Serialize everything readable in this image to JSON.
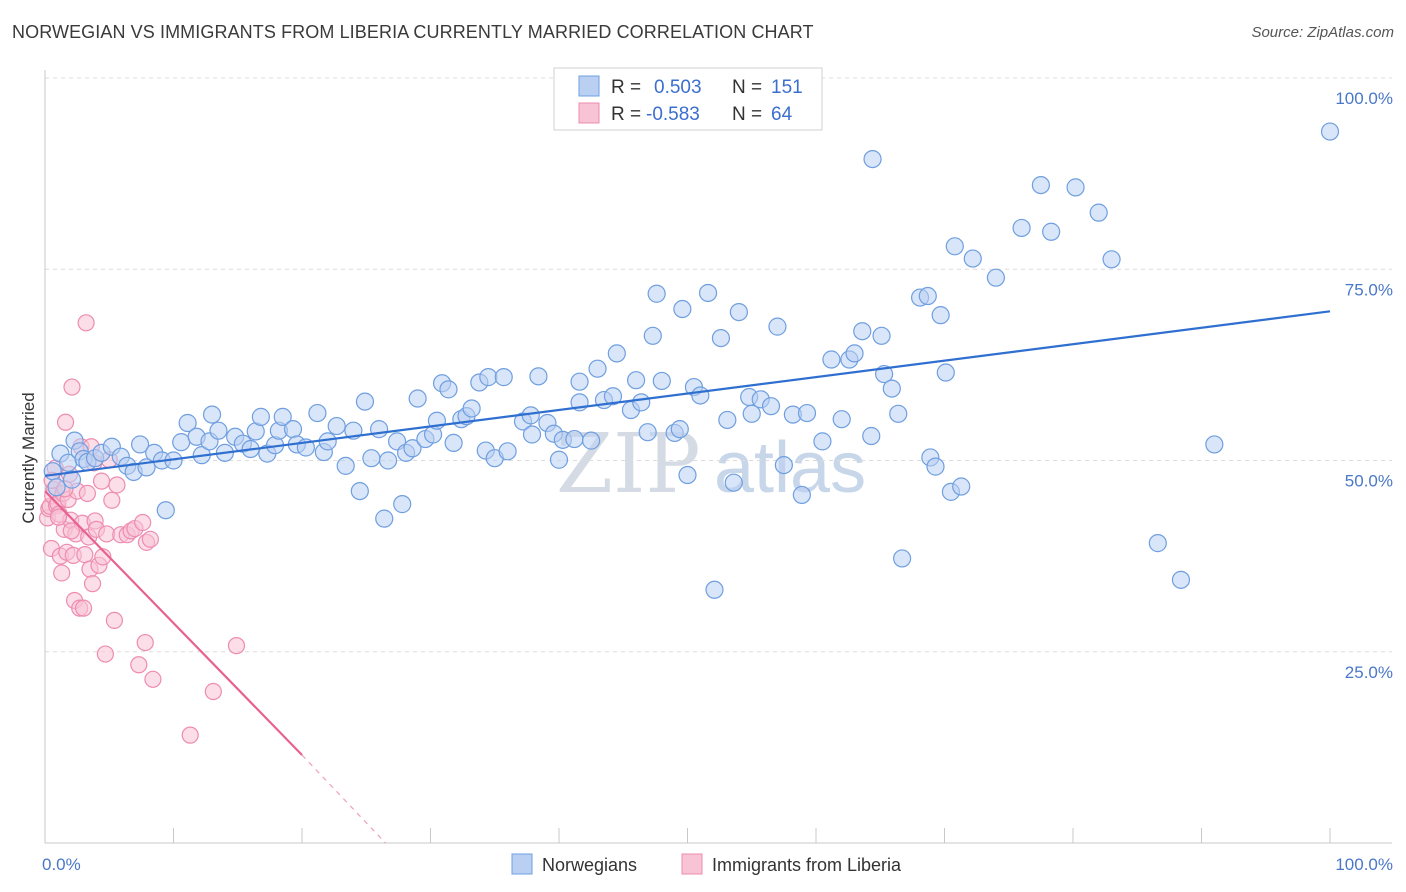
{
  "title": "NORWEGIAN VS IMMIGRANTS FROM LIBERIA CURRENTLY MARRIED CORRELATION CHART",
  "source": "Source: ZipAtlas.com",
  "watermark": {
    "zip": "ZIP",
    "atlas": "atlas"
  },
  "colors": {
    "blue": "#6f9fe0",
    "blue_fill": "#b9d0f2",
    "blue_line": "#2f6fd0",
    "pink": "#ee8cb0",
    "pink_fill": "#f7c3d5",
    "pink_line": "#e8628f",
    "axis_label": "#4a78c8"
  },
  "legend": {
    "rows": [
      {
        "r_label": "R =",
        "r_value": "0.503",
        "n_label": "N =",
        "n_value": "151"
      },
      {
        "r_label": "R =",
        "r_value": "-0.583",
        "n_label": "N =",
        "n_value": "64"
      }
    ]
  },
  "bottom_legend": {
    "series1": "Norwegians",
    "series2": "Immigrants from Liberia"
  },
  "chart_data": {
    "type": "scatter",
    "title": "NORWEGIAN VS IMMIGRANTS FROM LIBERIA CURRENTLY MARRIED CORRELATION CHART",
    "xlabel": "",
    "ylabel": "Currently Married",
    "xlim": [
      0,
      100
    ],
    "ylim": [
      0,
      100
    ],
    "x_tick_labels": [
      "0.0%",
      "100.0%"
    ],
    "y_tick_labels": [
      "100.0%",
      "75.0%",
      "50.0%",
      "25.0%"
    ],
    "y_tick_values": [
      100,
      75,
      50,
      25
    ],
    "series": [
      {
        "name": "Norwegians",
        "R": 0.503,
        "N": 151,
        "trend": {
          "x": [
            0,
            100
          ],
          "y": [
            48,
            69.5
          ]
        },
        "points": [
          [
            0.6,
            48.6
          ],
          [
            0.9,
            46.5
          ],
          [
            1.2,
            50.9
          ],
          [
            1.8,
            49.7
          ],
          [
            2.3,
            52.6
          ],
          [
            2.7,
            51.2
          ],
          [
            3.0,
            50.2
          ],
          [
            3.3,
            49.8
          ],
          [
            3.9,
            50.3
          ],
          [
            4.4,
            51.0
          ],
          [
            5.2,
            51.8
          ],
          [
            5.9,
            50.5
          ],
          [
            6.4,
            49.3
          ],
          [
            6.9,
            48.5
          ],
          [
            7.4,
            52.1
          ],
          [
            7.9,
            49.1
          ],
          [
            8.5,
            51.0
          ],
          [
            9.1,
            50.0
          ],
          [
            9.4,
            43.5
          ],
          [
            10.0,
            50.0
          ],
          [
            10.6,
            52.4
          ],
          [
            11.1,
            54.9
          ],
          [
            11.8,
            53.1
          ],
          [
            12.2,
            50.7
          ],
          [
            12.8,
            52.5
          ],
          [
            13.0,
            56.0
          ],
          [
            13.5,
            53.9
          ],
          [
            14.0,
            51.0
          ],
          [
            14.8,
            53.1
          ],
          [
            15.4,
            52.2
          ],
          [
            16.0,
            51.5
          ],
          [
            16.4,
            53.8
          ],
          [
            16.8,
            55.7
          ],
          [
            17.3,
            50.9
          ],
          [
            17.9,
            52.0
          ],
          [
            18.2,
            53.9
          ],
          [
            18.5,
            55.7
          ],
          [
            19.3,
            54.1
          ],
          [
            19.6,
            52.1
          ],
          [
            20.3,
            51.7
          ],
          [
            21.2,
            56.2
          ],
          [
            21.7,
            51.1
          ],
          [
            22.0,
            52.5
          ],
          [
            22.7,
            54.5
          ],
          [
            23.4,
            49.3
          ],
          [
            24.0,
            53.9
          ],
          [
            24.5,
            46.0
          ],
          [
            24.9,
            57.7
          ],
          [
            25.4,
            50.3
          ],
          [
            26.0,
            54.1
          ],
          [
            26.4,
            42.4
          ],
          [
            26.7,
            50.0
          ],
          [
            27.4,
            52.5
          ],
          [
            27.8,
            44.3
          ],
          [
            28.1,
            51.0
          ],
          [
            28.6,
            51.6
          ],
          [
            29.0,
            58.1
          ],
          [
            29.6,
            52.8
          ],
          [
            30.2,
            53.4
          ],
          [
            30.5,
            55.2
          ],
          [
            30.9,
            60.1
          ],
          [
            31.4,
            59.3
          ],
          [
            31.8,
            52.3
          ],
          [
            32.4,
            55.4
          ],
          [
            32.8,
            55.8
          ],
          [
            33.2,
            56.8
          ],
          [
            33.8,
            60.2
          ],
          [
            34.3,
            51.3
          ],
          [
            34.5,
            60.9
          ],
          [
            35.0,
            50.3
          ],
          [
            35.7,
            60.9
          ],
          [
            36.0,
            51.2
          ],
          [
            37.2,
            55.1
          ],
          [
            37.8,
            55.9
          ],
          [
            37.9,
            53.4
          ],
          [
            38.4,
            61.0
          ],
          [
            39.1,
            54.9
          ],
          [
            39.6,
            53.5
          ],
          [
            40.0,
            50.1
          ],
          [
            40.3,
            52.7
          ],
          [
            41.2,
            52.8
          ],
          [
            41.6,
            57.6
          ],
          [
            41.6,
            60.3
          ],
          [
            42.5,
            52.6
          ],
          [
            43.0,
            62.0
          ],
          [
            43.5,
            57.9
          ],
          [
            44.2,
            58.4
          ],
          [
            44.5,
            64.0
          ],
          [
            45.6,
            56.6
          ],
          [
            46.0,
            60.5
          ],
          [
            46.4,
            57.6
          ],
          [
            46.9,
            53.7
          ],
          [
            47.3,
            66.3
          ],
          [
            47.6,
            71.8
          ],
          [
            48.0,
            60.4
          ],
          [
            49.0,
            53.6
          ],
          [
            49.4,
            54.1
          ],
          [
            49.6,
            69.8
          ],
          [
            50.0,
            48.1
          ],
          [
            50.5,
            59.6
          ],
          [
            51.0,
            58.5
          ],
          [
            51.6,
            71.9
          ],
          [
            52.1,
            33.1
          ],
          [
            52.6,
            66.0
          ],
          [
            53.1,
            55.3
          ],
          [
            53.6,
            47.1
          ],
          [
            54.0,
            69.4
          ],
          [
            54.8,
            58.3
          ],
          [
            55.0,
            56.1
          ],
          [
            55.7,
            58.0
          ],
          [
            56.5,
            57.1
          ],
          [
            57.0,
            67.5
          ],
          [
            57.5,
            49.4
          ],
          [
            58.2,
            56.0
          ],
          [
            58.9,
            45.5
          ],
          [
            59.3,
            56.2
          ],
          [
            60.5,
            52.5
          ],
          [
            61.2,
            63.2
          ],
          [
            62.0,
            55.4
          ],
          [
            62.6,
            63.2
          ],
          [
            63.0,
            64.0
          ],
          [
            63.6,
            66.9
          ],
          [
            64.3,
            53.2
          ],
          [
            64.4,
            89.4
          ],
          [
            65.1,
            66.3
          ],
          [
            65.3,
            61.3
          ],
          [
            65.9,
            59.4
          ],
          [
            66.4,
            56.1
          ],
          [
            66.7,
            37.2
          ],
          [
            68.1,
            71.3
          ],
          [
            68.7,
            71.5
          ],
          [
            68.9,
            50.4
          ],
          [
            69.3,
            49.2
          ],
          [
            69.7,
            69.0
          ],
          [
            70.1,
            61.5
          ],
          [
            70.5,
            45.9
          ],
          [
            70.8,
            78.0
          ],
          [
            71.3,
            46.6
          ],
          [
            72.2,
            76.4
          ],
          [
            74.0,
            73.9
          ],
          [
            76.0,
            80.4
          ],
          [
            77.5,
            86.0
          ],
          [
            78.3,
            79.9
          ],
          [
            80.2,
            85.7
          ],
          [
            82.0,
            82.4
          ],
          [
            83.0,
            76.3
          ],
          [
            86.6,
            39.2
          ],
          [
            88.4,
            34.4
          ],
          [
            91.0,
            52.1
          ],
          [
            100,
            93.0
          ],
          [
            2.1,
            47.5
          ]
        ]
      },
      {
        "name": "Immigrants from Liberia",
        "R": -0.583,
        "N": 64,
        "trend": {
          "x": [
            0,
            20
          ],
          "y": [
            46,
            11.5
          ]
        },
        "trend_dashed": {
          "x": [
            20,
            26.5
          ],
          "y": [
            11.5,
            0
          ]
        },
        "points": [
          [
            0.2,
            42.5
          ],
          [
            0.3,
            43.7
          ],
          [
            0.4,
            44.0
          ],
          [
            0.5,
            38.5
          ],
          [
            0.6,
            45.4
          ],
          [
            0.7,
            46.2
          ],
          [
            0.8,
            49.0
          ],
          [
            0.9,
            44.1
          ],
          [
            1.0,
            44.4
          ],
          [
            1.1,
            43.0
          ],
          [
            1.2,
            37.5
          ],
          [
            1.3,
            35.3
          ],
          [
            1.4,
            45.7
          ],
          [
            1.5,
            41.0
          ],
          [
            1.6,
            55.0
          ],
          [
            1.7,
            38.0
          ],
          [
            1.8,
            44.9
          ],
          [
            1.9,
            48.2
          ],
          [
            2.0,
            42.2
          ],
          [
            2.1,
            59.6
          ],
          [
            2.2,
            37.6
          ],
          [
            2.3,
            31.7
          ],
          [
            2.4,
            40.4
          ],
          [
            2.5,
            46.0
          ],
          [
            2.7,
            30.7
          ],
          [
            2.8,
            51.8
          ],
          [
            2.9,
            41.8
          ],
          [
            3.0,
            30.7
          ],
          [
            3.1,
            37.7
          ],
          [
            3.2,
            68.0
          ],
          [
            3.3,
            45.7
          ],
          [
            3.4,
            40.0
          ],
          [
            3.5,
            35.8
          ],
          [
            3.6,
            51.8
          ],
          [
            3.7,
            33.9
          ],
          [
            3.8,
            49.7
          ],
          [
            3.9,
            42.1
          ],
          [
            4.0,
            41.0
          ],
          [
            4.2,
            36.3
          ],
          [
            4.4,
            47.3
          ],
          [
            4.5,
            37.4
          ],
          [
            4.7,
            24.7
          ],
          [
            4.8,
            40.4
          ],
          [
            5.0,
            50.1
          ],
          [
            5.2,
            44.8
          ],
          [
            5.4,
            29.1
          ],
          [
            5.6,
            46.8
          ],
          [
            5.9,
            40.3
          ],
          [
            6.4,
            40.3
          ],
          [
            6.7,
            40.8
          ],
          [
            7.0,
            41.1
          ],
          [
            7.3,
            23.3
          ],
          [
            7.6,
            41.9
          ],
          [
            7.8,
            26.2
          ],
          [
            7.9,
            39.3
          ],
          [
            8.2,
            39.7
          ],
          [
            8.4,
            21.4
          ],
          [
            11.3,
            14.1
          ],
          [
            13.1,
            19.8
          ],
          [
            14.9,
            25.8
          ],
          [
            0.55,
            47.4
          ],
          [
            1.05,
            42.6
          ],
          [
            1.55,
            46.3
          ],
          [
            2.05,
            40.8
          ]
        ]
      }
    ]
  }
}
